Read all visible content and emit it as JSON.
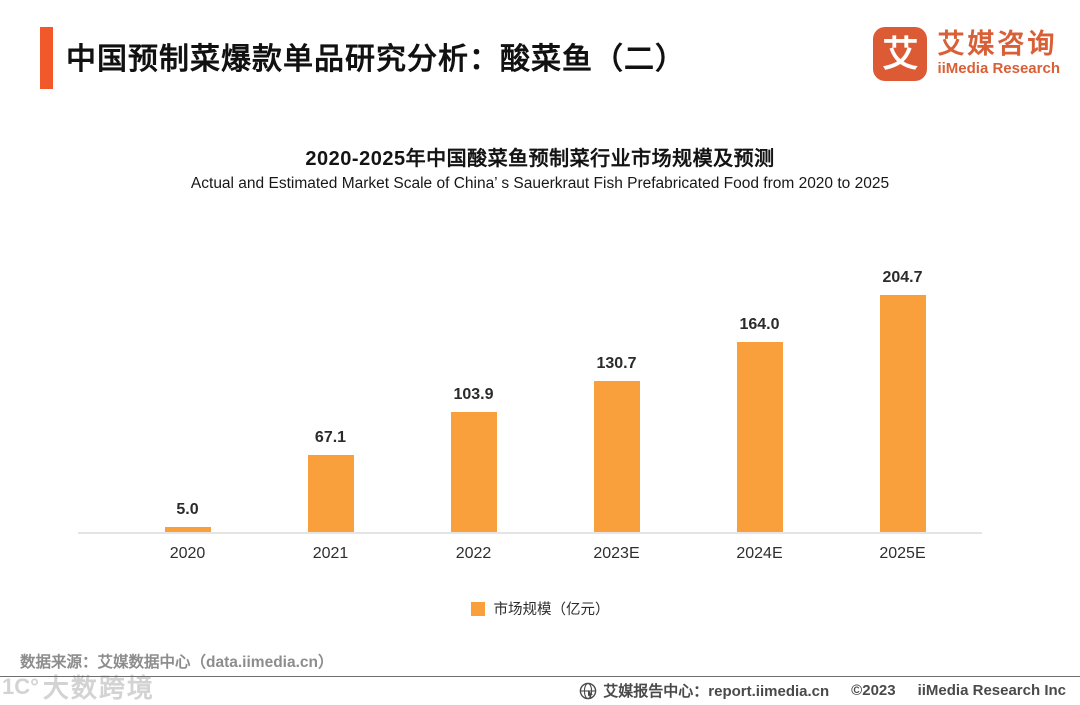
{
  "header": {
    "title": "中国预制菜爆款单品研究分析：酸菜鱼（二）",
    "logo": {
      "icon_char": "艾",
      "name_cn": "艾媒咨询",
      "name_en": "iiMedia Research"
    }
  },
  "chart_data": {
    "type": "bar",
    "title": "2020-2025年中国酸菜鱼预制菜行业市场规模及预测",
    "subtitle": "Actual and Estimated Market Scale of China’ s Sauerkraut Fish Prefabricated Food from 2020 to 2025",
    "categories": [
      "2020",
      "2021",
      "2022",
      "2023E",
      "2024E",
      "2025E"
    ],
    "values": [
      5.0,
      67.1,
      103.9,
      130.7,
      164.0,
      204.7
    ],
    "value_labels": [
      "5.0",
      "67.1",
      "103.9",
      "130.7",
      "164.0",
      "204.7"
    ],
    "series_name": "市场规模（亿元）",
    "ylim": [
      0,
      220
    ],
    "grid": false,
    "legend_position": "bottom",
    "bar_color": "#F9A03C"
  },
  "legend": {
    "label": "市场规模（亿元）"
  },
  "footer": {
    "source": "数据来源：艾媒数据中心（data.iimedia.cn）",
    "report_center": "艾媒报告中心：report.iimedia.cn",
    "copyright": "©2023",
    "company": "iiMedia Research  Inc",
    "watermark": "大数跨境",
    "watermark_mark": "1C°"
  },
  "colors": {
    "accent": "#F1592B",
    "logo": "#DC5B35",
    "bar": "#F9A03C"
  }
}
